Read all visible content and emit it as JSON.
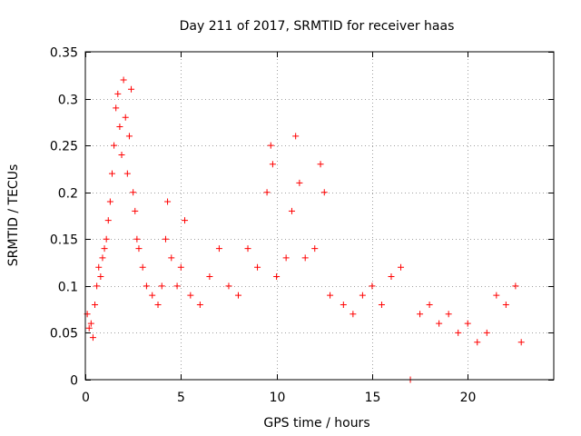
{
  "chart_data": {
    "type": "scatter",
    "title": "Day 211 of 2017, SRMTID for receiver haas",
    "xlabel": "GPS time / hours",
    "ylabel": "SRMTID / TECUs",
    "xlim": [
      0,
      24.5
    ],
    "ylim": [
      0,
      0.35
    ],
    "x_ticks": [
      0,
      5,
      10,
      15,
      20
    ],
    "x_tick_labels": [
      "0",
      "5",
      "10",
      "15",
      "20"
    ],
    "y_ticks": [
      0,
      0.05,
      0.1,
      0.15,
      0.2,
      0.25,
      0.3,
      0.35
    ],
    "y_tick_labels": [
      "0",
      "0.05",
      "0.1",
      "0.15",
      "0.2",
      "0.25",
      "0.3",
      "0.35"
    ],
    "grid": true,
    "marker": "+",
    "color": "#ff0000",
    "series": [
      {
        "name": "SRMTID",
        "points": [
          [
            0.1,
            0.07
          ],
          [
            0.2,
            0.055
          ],
          [
            0.3,
            0.06
          ],
          [
            0.4,
            0.045
          ],
          [
            0.5,
            0.08
          ],
          [
            0.6,
            0.1
          ],
          [
            0.7,
            0.12
          ],
          [
            0.8,
            0.11
          ],
          [
            0.9,
            0.13
          ],
          [
            1.0,
            0.14
          ],
          [
            1.1,
            0.15
          ],
          [
            1.2,
            0.17
          ],
          [
            1.3,
            0.19
          ],
          [
            1.4,
            0.22
          ],
          [
            1.5,
            0.25
          ],
          [
            1.6,
            0.29
          ],
          [
            1.7,
            0.305
          ],
          [
            1.8,
            0.27
          ],
          [
            1.9,
            0.24
          ],
          [
            2.0,
            0.32
          ],
          [
            2.1,
            0.28
          ],
          [
            2.2,
            0.22
          ],
          [
            2.3,
            0.26
          ],
          [
            2.4,
            0.31
          ],
          [
            2.5,
            0.2
          ],
          [
            2.6,
            0.18
          ],
          [
            2.7,
            0.15
          ],
          [
            2.8,
            0.14
          ],
          [
            3.0,
            0.12
          ],
          [
            3.2,
            0.1
          ],
          [
            3.5,
            0.09
          ],
          [
            3.8,
            0.08
          ],
          [
            4.0,
            0.1
          ],
          [
            4.2,
            0.15
          ],
          [
            4.3,
            0.19
          ],
          [
            4.5,
            0.13
          ],
          [
            4.8,
            0.1
          ],
          [
            5.0,
            0.12
          ],
          [
            5.2,
            0.17
          ],
          [
            5.5,
            0.09
          ],
          [
            6.0,
            0.08
          ],
          [
            6.5,
            0.11
          ],
          [
            7.0,
            0.14
          ],
          [
            7.5,
            0.1
          ],
          [
            8.0,
            0.09
          ],
          [
            8.5,
            0.14
          ],
          [
            9.0,
            0.12
          ],
          [
            9.5,
            0.2
          ],
          [
            9.7,
            0.25
          ],
          [
            9.8,
            0.23
          ],
          [
            10.0,
            0.11
          ],
          [
            10.5,
            0.13
          ],
          [
            10.8,
            0.18
          ],
          [
            11.0,
            0.26
          ],
          [
            11.2,
            0.21
          ],
          [
            11.5,
            0.13
          ],
          [
            12.0,
            0.14
          ],
          [
            12.3,
            0.23
          ],
          [
            12.5,
            0.2
          ],
          [
            12.8,
            0.09
          ],
          [
            13.5,
            0.08
          ],
          [
            14.0,
            0.07
          ],
          [
            14.5,
            0.09
          ],
          [
            15.0,
            0.1
          ],
          [
            15.5,
            0.08
          ],
          [
            16.0,
            0.11
          ],
          [
            16.5,
            0.12
          ],
          [
            17.0,
            0.0
          ],
          [
            17.5,
            0.07
          ],
          [
            18.0,
            0.08
          ],
          [
            18.5,
            0.06
          ],
          [
            19.0,
            0.07
          ],
          [
            19.5,
            0.05
          ],
          [
            20.0,
            0.06
          ],
          [
            20.5,
            0.04
          ],
          [
            21.0,
            0.05
          ],
          [
            21.5,
            0.09
          ],
          [
            22.0,
            0.08
          ],
          [
            22.5,
            0.1
          ],
          [
            22.8,
            0.04
          ]
        ]
      }
    ]
  }
}
